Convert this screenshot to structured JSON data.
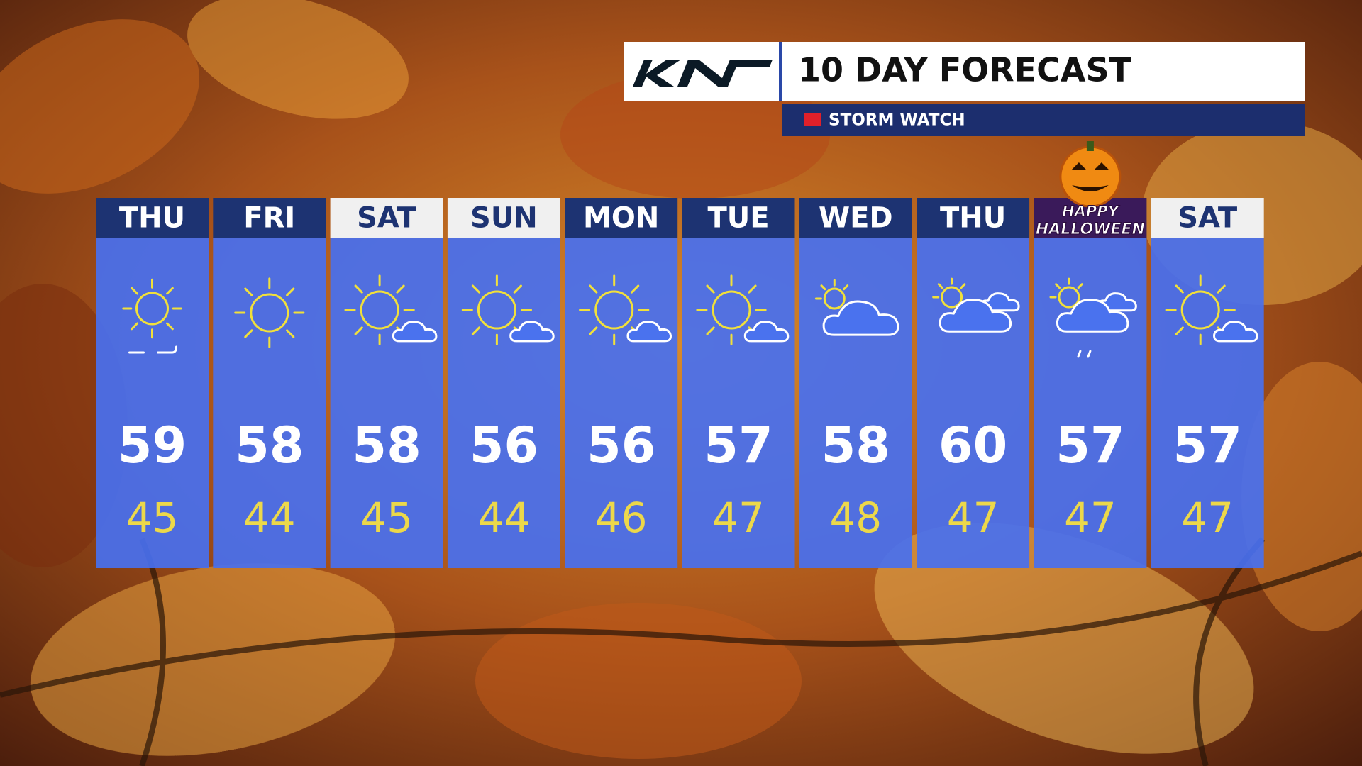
{
  "header": {
    "title": "10 DAY FORECAST",
    "alert": "STORM WATCH"
  },
  "days": [
    {
      "name": "THU",
      "high": 59,
      "low": 45,
      "icon": "haze",
      "header_style": "dark"
    },
    {
      "name": "FRI",
      "high": 58,
      "low": 44,
      "icon": "sunny",
      "header_style": "dark"
    },
    {
      "name": "SAT",
      "high": 58,
      "low": 45,
      "icon": "partly",
      "header_style": "light"
    },
    {
      "name": "SUN",
      "high": 56,
      "low": 44,
      "icon": "partly",
      "header_style": "light"
    },
    {
      "name": "MON",
      "high": 56,
      "low": 46,
      "icon": "partly",
      "header_style": "dark"
    },
    {
      "name": "TUE",
      "high": 57,
      "low": 47,
      "icon": "partly",
      "header_style": "dark"
    },
    {
      "name": "WED",
      "high": 58,
      "low": 48,
      "icon": "mostly-cloudy",
      "header_style": "dark"
    },
    {
      "name": "THU",
      "high": 60,
      "low": 47,
      "icon": "clouds",
      "header_style": "dark"
    },
    {
      "banner": [
        "HAPPY",
        "HALLOWEEN"
      ],
      "high": 57,
      "low": 47,
      "icon": "drizzle",
      "header_style": "halloween"
    },
    {
      "name": "SAT",
      "high": 57,
      "low": 47,
      "icon": "partly",
      "header_style": "light"
    }
  ]
}
